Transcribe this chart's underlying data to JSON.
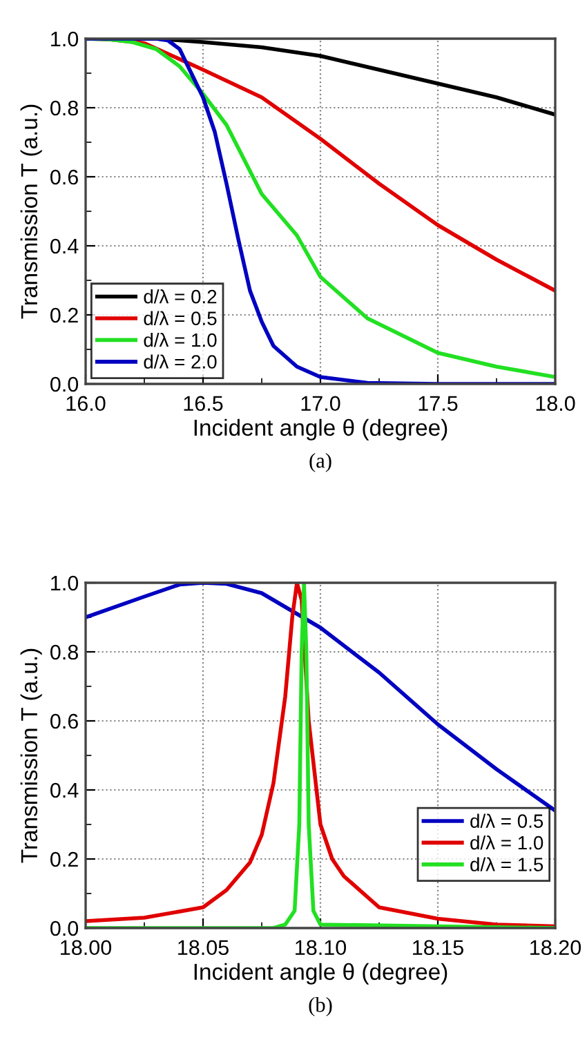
{
  "chart_data": [
    {
      "type": "line",
      "xlabel": "Incident angle θ (degree)",
      "ylabel": "Transmission T (a.u.)",
      "annotations": [
        "(a)"
      ],
      "xlim": [
        16.0,
        18.0
      ],
      "xticks": [
        {
          "value": 16.0,
          "label": "16.0"
        },
        {
          "value": 16.5,
          "label": "16.5"
        },
        {
          "value": 17.0,
          "label": "17.0"
        },
        {
          "value": 17.5,
          "label": "17.5"
        },
        {
          "value": 18.0,
          "label": "18.0"
        }
      ],
      "ylim": [
        0.0,
        1.0
      ],
      "yticks": [
        {
          "value": 0.0,
          "label": "0.0"
        },
        {
          "value": 0.2,
          "label": "0.2"
        },
        {
          "value": 0.4,
          "label": "0.4"
        },
        {
          "value": 0.6,
          "label": "0.6"
        },
        {
          "value": 0.8,
          "label": "0.8"
        },
        {
          "value": 1.0,
          "label": "1.0"
        }
      ],
      "grid": true,
      "legend": "bottom left",
      "line_style": "solid",
      "marker": "none",
      "series": [
        {
          "name": "d/λ = 0.2",
          "color": "#000000",
          "x": [
            16.0,
            16.3,
            16.5,
            16.75,
            17.0,
            17.25,
            17.5,
            17.75,
            18.0
          ],
          "values": [
            1.0,
            1.0,
            0.99,
            0.975,
            0.95,
            0.91,
            0.87,
            0.83,
            0.78
          ]
        },
        {
          "name": "d/λ = 0.5",
          "color": "#e00000",
          "x": [
            16.0,
            16.1,
            16.25,
            16.5,
            16.75,
            17.0,
            17.25,
            17.5,
            17.75,
            18.0
          ],
          "values": [
            1.0,
            0.998,
            0.987,
            0.91,
            0.83,
            0.71,
            0.58,
            0.46,
            0.36,
            0.27
          ]
        },
        {
          "name": "d/λ = 1.0",
          "color": "#22e022",
          "x": [
            16.0,
            16.1,
            16.2,
            16.3,
            16.4,
            16.5,
            16.6,
            16.75,
            16.9,
            17.0,
            17.2,
            17.5,
            17.75,
            18.0
          ],
          "values": [
            1.0,
            0.998,
            0.99,
            0.97,
            0.92,
            0.84,
            0.75,
            0.55,
            0.43,
            0.31,
            0.19,
            0.09,
            0.05,
            0.02
          ]
        },
        {
          "name": "d/λ = 2.0",
          "color": "#0000c0",
          "x": [
            16.0,
            16.3,
            16.35,
            16.4,
            16.45,
            16.5,
            16.55,
            16.6,
            16.65,
            16.7,
            16.75,
            16.8,
            16.9,
            17.0,
            17.2,
            17.5,
            18.0
          ],
          "values": [
            1.0,
            1.0,
            0.995,
            0.97,
            0.9,
            0.83,
            0.73,
            0.58,
            0.42,
            0.27,
            0.18,
            0.11,
            0.05,
            0.02,
            0.003,
            0.0,
            0.0
          ]
        }
      ]
    },
    {
      "type": "line",
      "xlabel": "Incident angle θ (degree)",
      "ylabel": "Transmission T (a.u.)",
      "annotations": [
        "(b)"
      ],
      "xlim": [
        18.0,
        18.2
      ],
      "xticks": [
        {
          "value": 18.0,
          "label": "18.00"
        },
        {
          "value": 18.05,
          "label": "18.05"
        },
        {
          "value": 18.1,
          "label": "18.10"
        },
        {
          "value": 18.15,
          "label": "18.15"
        },
        {
          "value": 18.2,
          "label": "18.20"
        }
      ],
      "ylim": [
        0.0,
        1.0
      ],
      "yticks": [
        {
          "value": 0.0,
          "label": "0.0"
        },
        {
          "value": 0.2,
          "label": "0.2"
        },
        {
          "value": 0.4,
          "label": "0.4"
        },
        {
          "value": 0.6,
          "label": "0.6"
        },
        {
          "value": 0.8,
          "label": "0.8"
        },
        {
          "value": 1.0,
          "label": "1.0"
        }
      ],
      "grid": true,
      "legend": "bottom right",
      "line_style": "solid",
      "marker": "none",
      "series": [
        {
          "name": "d/λ = 0.5",
          "color": "#0000c0",
          "x": [
            18.0,
            18.025,
            18.04,
            18.05,
            18.06,
            18.075,
            18.1,
            18.125,
            18.15,
            18.175,
            18.2
          ],
          "values": [
            0.9,
            0.96,
            0.995,
            1.0,
            0.997,
            0.97,
            0.87,
            0.74,
            0.59,
            0.46,
            0.34
          ]
        },
        {
          "name": "d/λ = 1.0",
          "color": "#e00000",
          "x": [
            18.0,
            18.025,
            18.05,
            18.06,
            18.07,
            18.075,
            18.08,
            18.085,
            18.088,
            18.09,
            18.092,
            18.095,
            18.1,
            18.105,
            18.11,
            18.125,
            18.15,
            18.175,
            18.2
          ],
          "values": [
            0.02,
            0.03,
            0.06,
            0.11,
            0.19,
            0.27,
            0.42,
            0.67,
            0.9,
            1.0,
            0.95,
            0.6,
            0.3,
            0.2,
            0.15,
            0.06,
            0.027,
            0.01,
            0.005
          ]
        },
        {
          "name": "d/λ = 1.5",
          "color": "#22e022",
          "x": [
            18.0,
            18.08,
            18.085,
            18.089,
            18.091,
            18.092,
            18.093,
            18.094,
            18.095,
            18.097,
            18.1,
            18.2
          ],
          "values": [
            0.0,
            0.0,
            0.01,
            0.05,
            0.3,
            0.8,
            1.0,
            0.8,
            0.3,
            0.05,
            0.01,
            0.0
          ]
        }
      ]
    }
  ]
}
